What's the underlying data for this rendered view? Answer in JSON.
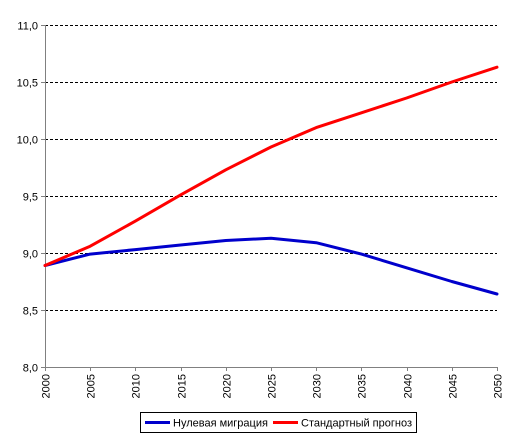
{
  "chart_data": {
    "type": "line",
    "x": [
      "2000",
      "2005",
      "2010",
      "2015",
      "2020",
      "2025",
      "2030",
      "2035",
      "2040",
      "2045",
      "2050"
    ],
    "ylim": [
      8.0,
      11.0
    ],
    "y_ticks": [
      "8,0",
      "8,5",
      "9,0",
      "9,5",
      "10,0",
      "10,5",
      "11,0"
    ],
    "y_tick_values": [
      8.0,
      8.5,
      9.0,
      9.5,
      10.0,
      10.5,
      11.0
    ],
    "grid": "horizontal dashed",
    "legend_position": "bottom",
    "series": [
      {
        "name": "Нулевая миграция",
        "color": "#0000cc",
        "values": [
          8.89,
          8.99,
          9.03,
          9.07,
          9.11,
          9.13,
          9.09,
          8.99,
          8.87,
          8.75,
          8.64
        ]
      },
      {
        "name": "Стандартный прогноз",
        "color": "#ff0000",
        "values": [
          8.89,
          9.06,
          9.28,
          9.51,
          9.73,
          9.93,
          10.1,
          10.23,
          10.36,
          10.5,
          10.63
        ]
      }
    ]
  }
}
